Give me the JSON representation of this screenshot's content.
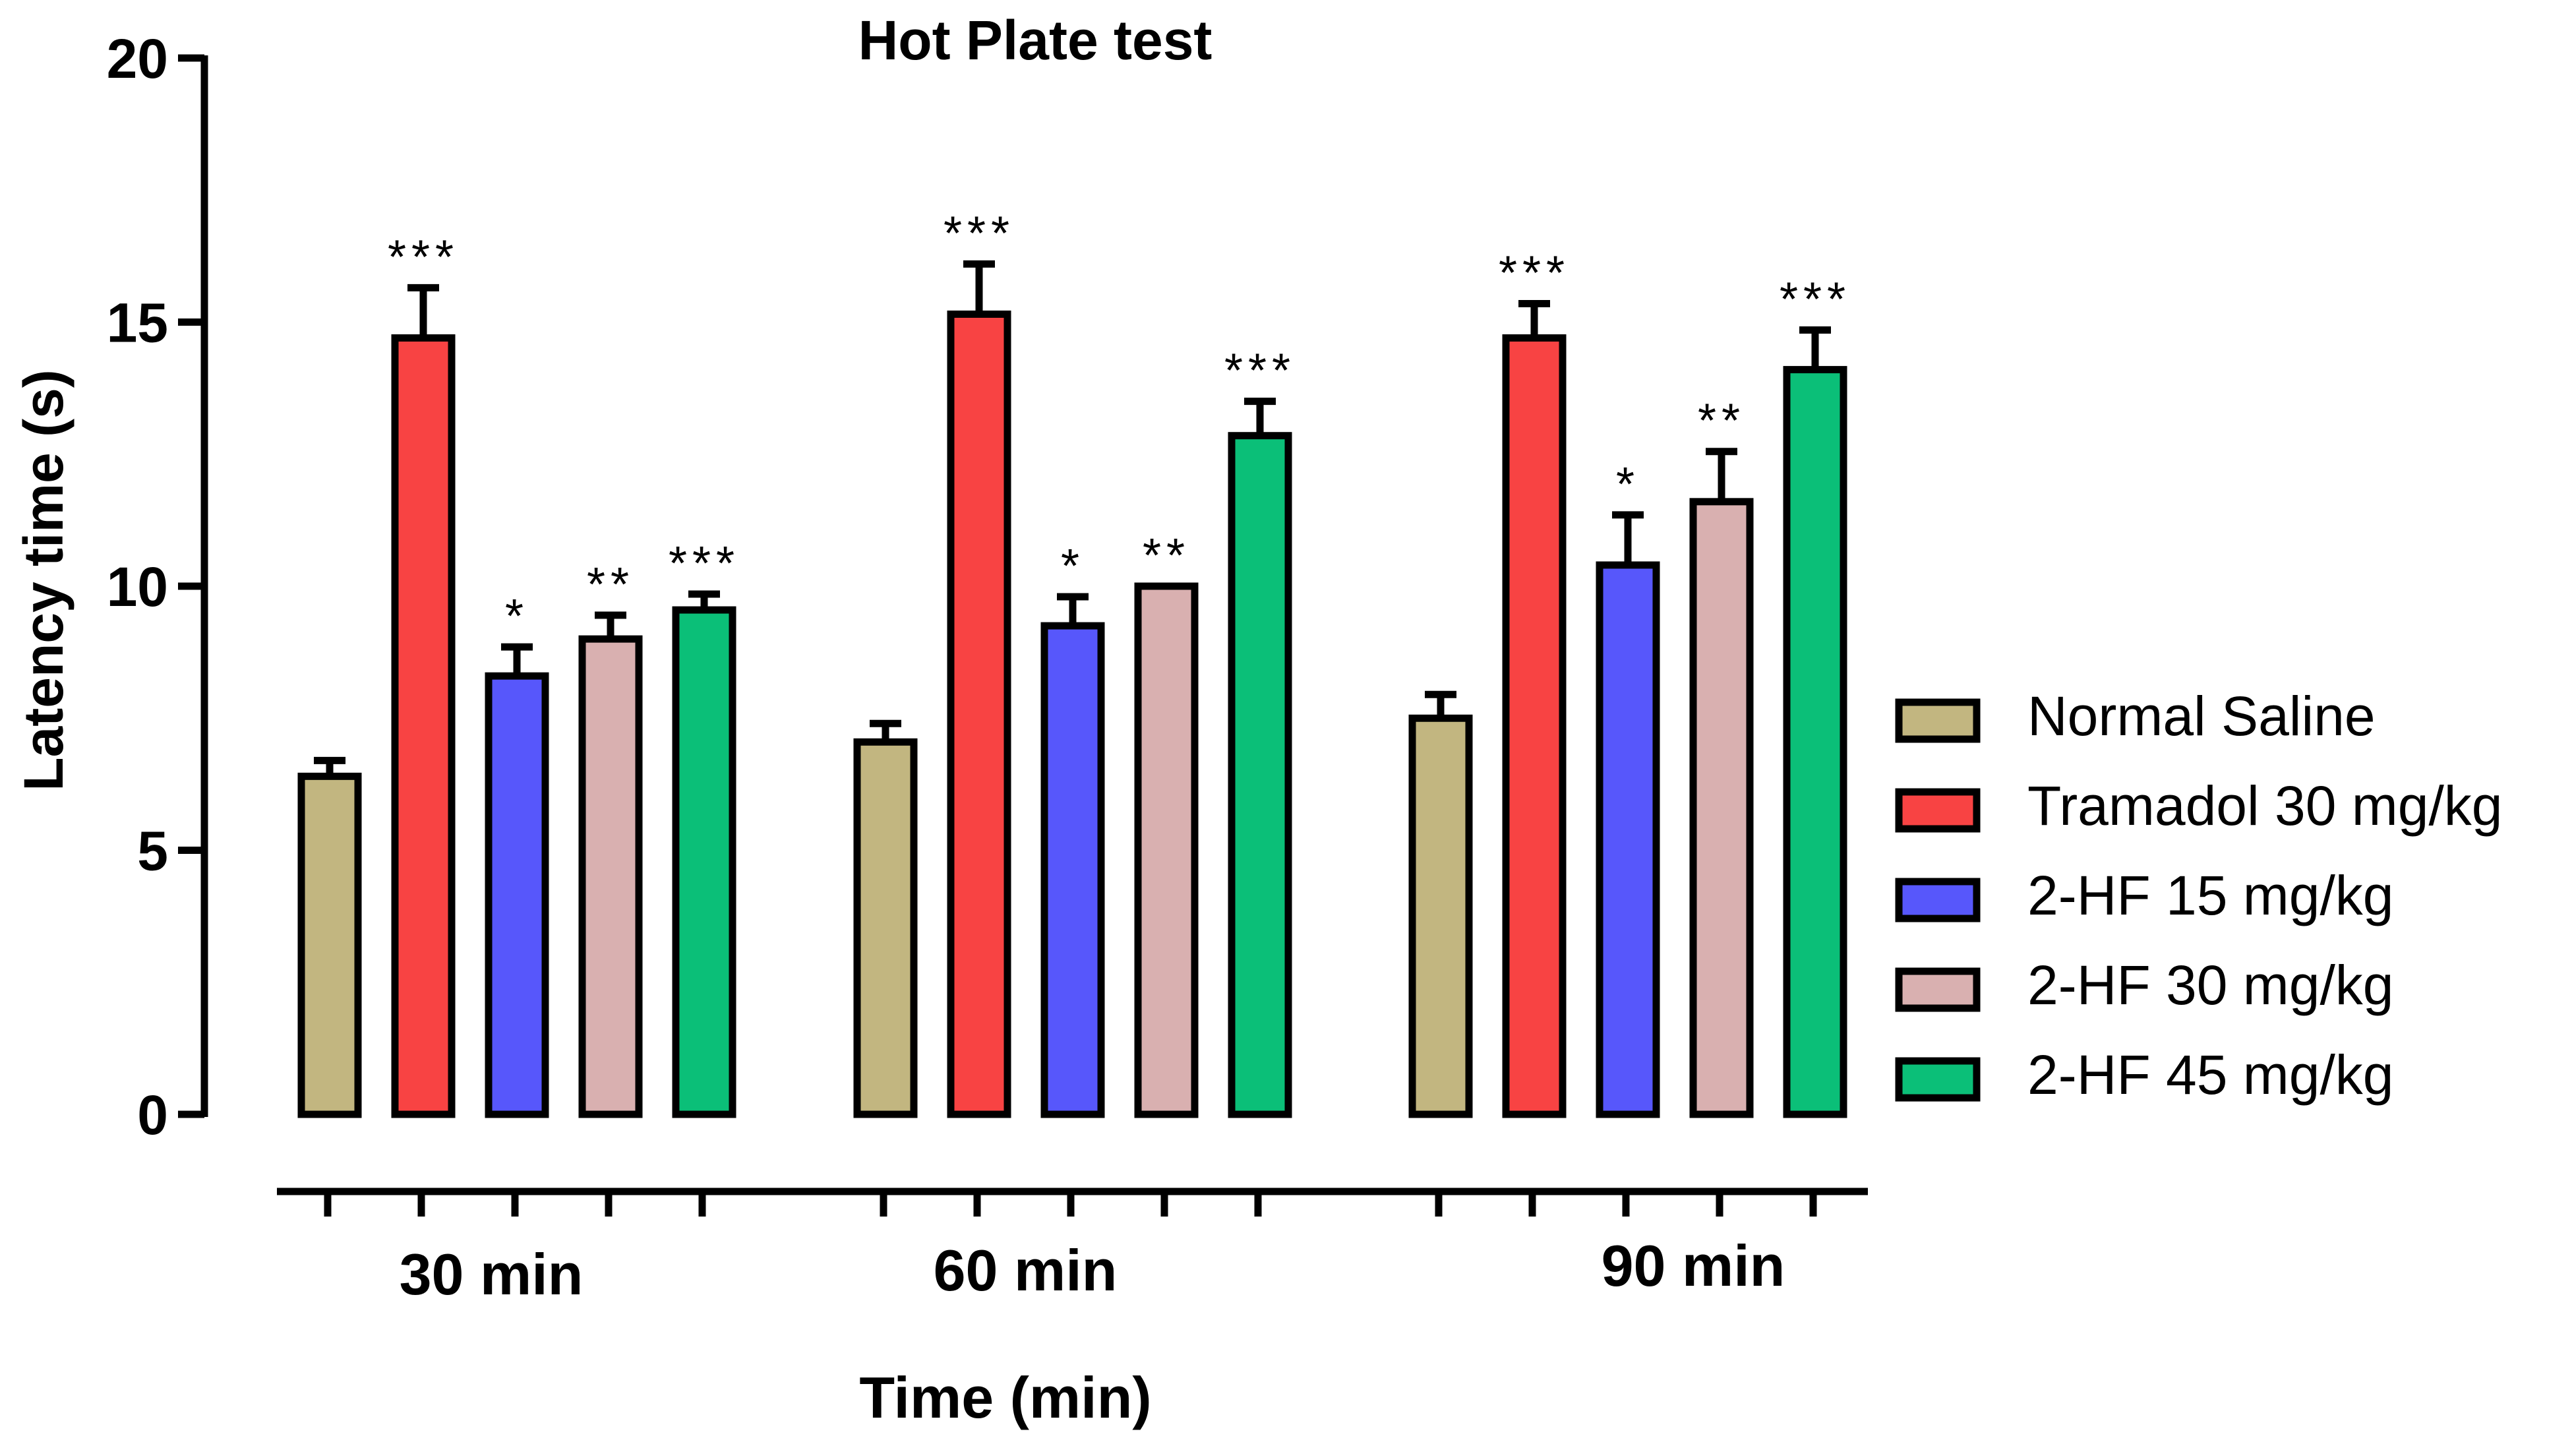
{
  "chart_data": {
    "type": "bar",
    "title": "Hot Plate test",
    "xlabel": "Time (min)",
    "ylabel": "Latency time (s)",
    "ylim": [
      0,
      20
    ],
    "yticks": [
      "0",
      "5",
      "10",
      "15",
      "20"
    ],
    "categories": [
      "30 min",
      "60 min",
      "90 min"
    ],
    "legend_position": "right",
    "series": [
      {
        "name": "Normal Saline",
        "color": "#C2B680",
        "values": [
          6.4,
          7.05,
          7.5
        ],
        "errors": [
          0.3,
          0.35,
          0.45
        ],
        "significance": [
          "",
          "",
          ""
        ]
      },
      {
        "name": "Tramadol 30 mg/kg",
        "color": "#F84343",
        "values": [
          14.7,
          15.15,
          14.7
        ],
        "errors": [
          0.95,
          0.95,
          0.65
        ],
        "significance": [
          "***",
          "***",
          "***"
        ]
      },
      {
        "name": "2-HF 15 mg/kg",
        "color": "#5757FB",
        "values": [
          8.3,
          9.25,
          10.4
        ],
        "errors": [
          0.55,
          0.55,
          0.95
        ],
        "significance": [
          "*",
          "*",
          "*"
        ]
      },
      {
        "name": "2-HF 30 mg/kg",
        "color": "#D9B0B0",
        "values": [
          9.0,
          10.0,
          11.6
        ],
        "errors": [
          0.45,
          0.0,
          0.95
        ],
        "significance": [
          "**",
          "**",
          "**"
        ]
      },
      {
        "name": "2-HF 45 mg/kg",
        "color": "#0BBF78",
        "values": [
          9.55,
          12.85,
          14.1
        ],
        "errors": [
          0.3,
          0.65,
          0.75
        ],
        "significance": [
          "***",
          "***",
          "***"
        ]
      }
    ]
  }
}
